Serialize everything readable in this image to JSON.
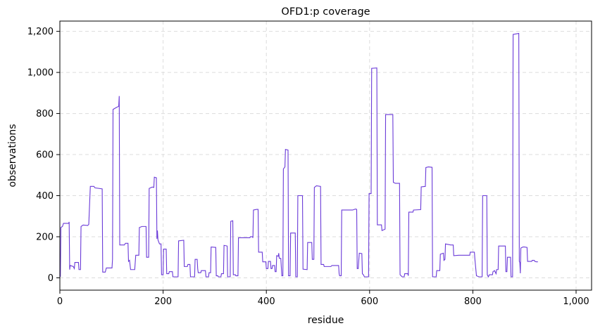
{
  "chart_data": {
    "type": "line",
    "title": "OFD1:p coverage",
    "xlabel": "residue",
    "ylabel": "observations",
    "xlim": [
      0,
      1030
    ],
    "ylim": [
      -60,
      1250
    ],
    "xticks": [
      0,
      200,
      400,
      600,
      800,
      1000
    ],
    "xtick_labels": [
      "0",
      "200",
      "400",
      "600",
      "800",
      "1,000"
    ],
    "yticks": [
      0,
      200,
      400,
      600,
      800,
      1000,
      1200
    ],
    "ytick_labels": [
      "0",
      "200",
      "400",
      "600",
      "800",
      "1,000",
      "1,200"
    ],
    "grid": true,
    "line_color": "#6a3ad8",
    "series": [
      {
        "name": "",
        "points": [
          [
            1,
            5
          ],
          [
            2,
            245
          ],
          [
            5,
            250
          ],
          [
            7,
            265
          ],
          [
            17,
            265
          ],
          [
            18,
            272
          ],
          [
            19,
            40
          ],
          [
            20,
            60
          ],
          [
            26,
            55
          ],
          [
            28,
            45
          ],
          [
            29,
            75
          ],
          [
            36,
            75
          ],
          [
            37,
            40
          ],
          [
            40,
            40
          ],
          [
            41,
            250
          ],
          [
            45,
            257
          ],
          [
            54,
            255
          ],
          [
            56,
            260
          ],
          [
            59,
            445
          ],
          [
            66,
            445
          ],
          [
            68,
            438
          ],
          [
            82,
            433
          ],
          [
            83,
            28
          ],
          [
            88,
            28
          ],
          [
            90,
            48
          ],
          [
            101,
            48
          ],
          [
            102,
            90
          ],
          [
            103,
            820
          ],
          [
            110,
            830
          ],
          [
            114,
            835
          ],
          [
            115,
            885
          ],
          [
            116,
            160
          ],
          [
            125,
            160
          ],
          [
            127,
            168
          ],
          [
            132,
            168
          ],
          [
            133,
            80
          ],
          [
            135,
            85
          ],
          [
            137,
            40
          ],
          [
            145,
            40
          ],
          [
            147,
            110
          ],
          [
            153,
            110
          ],
          [
            154,
            245
          ],
          [
            159,
            250
          ],
          [
            167,
            250
          ],
          [
            168,
            100
          ],
          [
            172,
            100
          ],
          [
            173,
            435
          ],
          [
            179,
            442
          ],
          [
            182,
            440
          ],
          [
            183,
            490
          ],
          [
            187,
            487
          ],
          [
            188,
            190
          ],
          [
            189,
            230
          ],
          [
            190,
            185
          ],
          [
            193,
            165
          ],
          [
            196,
            165
          ],
          [
            197,
            15
          ],
          [
            200,
            15
          ],
          [
            201,
            140
          ],
          [
            206,
            140
          ],
          [
            207,
            20
          ],
          [
            211,
            20
          ],
          [
            212,
            30
          ],
          [
            218,
            30
          ],
          [
            219,
            5
          ],
          [
            229,
            5
          ],
          [
            230,
            180
          ],
          [
            240,
            183
          ],
          [
            241,
            55
          ],
          [
            247,
            55
          ],
          [
            248,
            65
          ],
          [
            252,
            65
          ],
          [
            253,
            5
          ],
          [
            261,
            5
          ],
          [
            262,
            90
          ],
          [
            266,
            90
          ],
          [
            267,
            45
          ],
          [
            268,
            25
          ],
          [
            273,
            25
          ],
          [
            274,
            35
          ],
          [
            282,
            35
          ],
          [
            283,
            5
          ],
          [
            288,
            5
          ],
          [
            289,
            25
          ],
          [
            292,
            25
          ],
          [
            293,
            150
          ],
          [
            302,
            148
          ],
          [
            303,
            10
          ],
          [
            306,
            10
          ],
          [
            307,
            5
          ],
          [
            312,
            5
          ],
          [
            313,
            20
          ],
          [
            317,
            20
          ],
          [
            318,
            158
          ],
          [
            324,
            155
          ],
          [
            325,
            5
          ],
          [
            330,
            5
          ],
          [
            331,
            275
          ],
          [
            335,
            278
          ],
          [
            336,
            15
          ],
          [
            340,
            15
          ],
          [
            341,
            10
          ],
          [
            345,
            10
          ],
          [
            346,
            195
          ],
          [
            368,
            195
          ],
          [
            369,
            200
          ],
          [
            373,
            200
          ],
          [
            374,
            195
          ],
          [
            375,
            330
          ],
          [
            381,
            333
          ],
          [
            384,
            333
          ],
          [
            385,
            125
          ],
          [
            392,
            125
          ],
          [
            393,
            78
          ],
          [
            399,
            78
          ],
          [
            400,
            45
          ],
          [
            403,
            45
          ],
          [
            404,
            80
          ],
          [
            408,
            80
          ],
          [
            409,
            45
          ],
          [
            411,
            45
          ],
          [
            412,
            60
          ],
          [
            416,
            60
          ],
          [
            417,
            30
          ],
          [
            419,
            30
          ],
          [
            420,
            108
          ],
          [
            423,
            105
          ],
          [
            424,
            120
          ],
          [
            425,
            95
          ],
          [
            428,
            95
          ],
          [
            430,
            10
          ],
          [
            432,
            10
          ],
          [
            433,
            530
          ],
          [
            436,
            540
          ],
          [
            437,
            625
          ],
          [
            442,
            622
          ],
          [
            443,
            10
          ],
          [
            446,
            10
          ],
          [
            447,
            218
          ],
          [
            456,
            218
          ],
          [
            457,
            5
          ],
          [
            460,
            5
          ],
          [
            461,
            400
          ],
          [
            470,
            400
          ],
          [
            471,
            42
          ],
          [
            479,
            40
          ],
          [
            480,
            172
          ],
          [
            488,
            172
          ],
          [
            489,
            90
          ],
          [
            492,
            90
          ],
          [
            493,
            440
          ],
          [
            497,
            448
          ],
          [
            505,
            445
          ],
          [
            506,
            65
          ],
          [
            511,
            65
          ],
          [
            512,
            55
          ],
          [
            525,
            55
          ],
          [
            527,
            60
          ],
          [
            540,
            60
          ],
          [
            541,
            20
          ],
          [
            542,
            10
          ],
          [
            545,
            10
          ],
          [
            546,
            330
          ],
          [
            567,
            330
          ],
          [
            573,
            335
          ],
          [
            575,
            333
          ],
          [
            576,
            45
          ],
          [
            578,
            45
          ],
          [
            580,
            120
          ],
          [
            585,
            118
          ],
          [
            586,
            20
          ],
          [
            588,
            15
          ],
          [
            590,
            5
          ],
          [
            598,
            5
          ],
          [
            599,
            410
          ],
          [
            603,
            410
          ],
          [
            604,
            1020
          ],
          [
            614,
            1022
          ],
          [
            615,
            258
          ],
          [
            623,
            258
          ],
          [
            624,
            230
          ],
          [
            630,
            237
          ],
          [
            631,
            795
          ],
          [
            645,
            795
          ],
          [
            646,
            465
          ],
          [
            650,
            460
          ],
          [
            658,
            460
          ],
          [
            659,
            15
          ],
          [
            661,
            10
          ],
          [
            663,
            5
          ],
          [
            667,
            5
          ],
          [
            668,
            20
          ],
          [
            674,
            20
          ],
          [
            675,
            10
          ],
          [
            676,
            320
          ],
          [
            684,
            320
          ],
          [
            685,
            330
          ],
          [
            699,
            332
          ],
          [
            700,
            443
          ],
          [
            708,
            445
          ],
          [
            709,
            537
          ],
          [
            714,
            540
          ],
          [
            721,
            538
          ],
          [
            722,
            5
          ],
          [
            729,
            5
          ],
          [
            730,
            35
          ],
          [
            736,
            35
          ],
          [
            737,
            115
          ],
          [
            743,
            120
          ],
          [
            744,
            85
          ],
          [
            746,
            90
          ],
          [
            747,
            165
          ],
          [
            757,
            160
          ],
          [
            762,
            160
          ],
          [
            763,
            108
          ],
          [
            773,
            110
          ],
          [
            788,
            110
          ],
          [
            794,
            110
          ],
          [
            795,
            125
          ],
          [
            803,
            125
          ],
          [
            804,
            90
          ],
          [
            807,
            10
          ],
          [
            812,
            5
          ],
          [
            818,
            5
          ],
          [
            819,
            400
          ],
          [
            827,
            400
          ],
          [
            828,
            15
          ],
          [
            830,
            5
          ],
          [
            832,
            15
          ],
          [
            838,
            15
          ],
          [
            839,
            30
          ],
          [
            842,
            35
          ],
          [
            845,
            20
          ],
          [
            846,
            40
          ],
          [
            849,
            40
          ],
          [
            850,
            155
          ],
          [
            863,
            155
          ],
          [
            864,
            30
          ],
          [
            866,
            30
          ],
          [
            867,
            100
          ],
          [
            873,
            100
          ],
          [
            874,
            5
          ],
          [
            877,
            5
          ],
          [
            878,
            1185
          ],
          [
            889,
            1190
          ],
          [
            890,
            80
          ],
          [
            891,
            75
          ],
          [
            892,
            22
          ],
          [
            893,
            145
          ],
          [
            897,
            150
          ],
          [
            900,
            150
          ],
          [
            905,
            148
          ],
          [
            906,
            80
          ],
          [
            914,
            80
          ],
          [
            915,
            85
          ],
          [
            919,
            85
          ],
          [
            920,
            80
          ],
          [
            923,
            78
          ],
          [
            926,
            78
          ]
        ]
      }
    ]
  }
}
